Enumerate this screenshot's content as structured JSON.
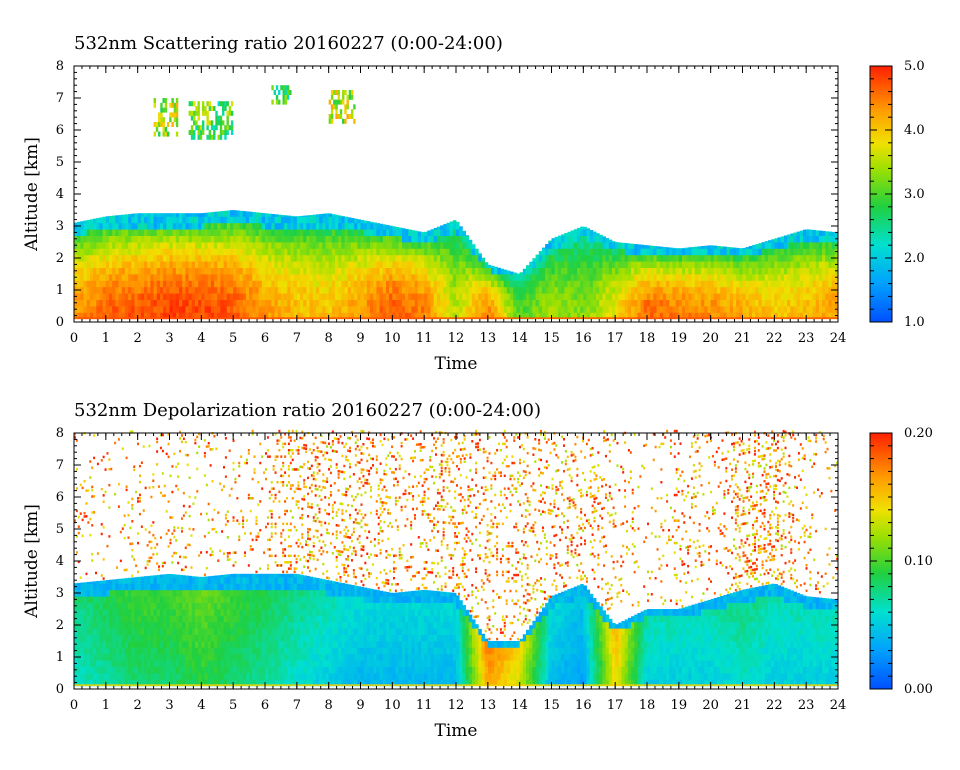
{
  "chart_data": [
    {
      "type": "heatmap",
      "title": "532nm Scattering ratio  20160227 (0:00-24:00)",
      "xlabel": "Time",
      "ylabel": "Altitude [km]",
      "xlim": [
        0,
        24
      ],
      "ylim": [
        0,
        8
      ],
      "x_ticks": [
        "0",
        "1",
        "2",
        "3",
        "4",
        "5",
        "6",
        "7",
        "8",
        "9",
        "10",
        "11",
        "12",
        "13",
        "14",
        "15",
        "16",
        "17",
        "18",
        "19",
        "20",
        "21",
        "22",
        "23",
        "24"
      ],
      "y_ticks": [
        "0",
        "1",
        "2",
        "3",
        "4",
        "5",
        "6",
        "7",
        "8"
      ],
      "colorbar": {
        "min": 1.0,
        "max": 5.0,
        "ticks": [
          "1.0",
          "2.0",
          "3.0",
          "4.0",
          "5.0"
        ]
      },
      "layer_top_km": [
        [
          0,
          3.1
        ],
        [
          1,
          3.3
        ],
        [
          2,
          3.4
        ],
        [
          3,
          3.4
        ],
        [
          4,
          3.4
        ],
        [
          5,
          3.5
        ],
        [
          6,
          3.4
        ],
        [
          7,
          3.3
        ],
        [
          8,
          3.4
        ],
        [
          9,
          3.2
        ],
        [
          10,
          3.0
        ],
        [
          11,
          2.8
        ],
        [
          12,
          3.2
        ],
        [
          13,
          1.8
        ],
        [
          14,
          1.5
        ],
        [
          15,
          2.6
        ],
        [
          16,
          3.0
        ],
        [
          17,
          2.5
        ],
        [
          18,
          2.4
        ],
        [
          19,
          2.3
        ],
        [
          20,
          2.4
        ],
        [
          21,
          2.3
        ],
        [
          22,
          2.6
        ],
        [
          23,
          2.9
        ],
        [
          24,
          2.8
        ]
      ],
      "mean_ratio_below_layer_top": [
        [
          0,
          4.3
        ],
        [
          1,
          4.6
        ],
        [
          2,
          4.7
        ],
        [
          3,
          4.8
        ],
        [
          4,
          4.8
        ],
        [
          5,
          4.7
        ],
        [
          6,
          4.3
        ],
        [
          7,
          4.1
        ],
        [
          8,
          4.0
        ],
        [
          9,
          4.3
        ],
        [
          10,
          4.7
        ],
        [
          11,
          4.5
        ],
        [
          12,
          3.5
        ],
        [
          13,
          4.5
        ],
        [
          14,
          3.0
        ],
        [
          15,
          3.4
        ],
        [
          16,
          3.2
        ],
        [
          17,
          3.8
        ],
        [
          18,
          4.6
        ],
        [
          19,
          4.5
        ],
        [
          20,
          4.4
        ],
        [
          21,
          4.2
        ],
        [
          22,
          4.0
        ],
        [
          23,
          4.1
        ],
        [
          24,
          4.3
        ]
      ],
      "cirrus_patches": [
        {
          "t": [
            2.5,
            3.2
          ],
          "alt_km": [
            5.8,
            7.0
          ],
          "ratio": 3.5
        },
        {
          "t": [
            3.6,
            5.0
          ],
          "alt_km": [
            5.7,
            6.9
          ],
          "ratio": 3.0
        },
        {
          "t": [
            6.2,
            6.8
          ],
          "alt_km": [
            6.8,
            7.3
          ],
          "ratio": 2.8
        },
        {
          "t": [
            8.0,
            8.8
          ],
          "alt_km": [
            6.2,
            7.2
          ],
          "ratio": 3.5
        }
      ]
    },
    {
      "type": "heatmap",
      "title": "532nm Depolarization ratio  20160227 (0:00-24:00)",
      "xlabel": "Time",
      "ylabel": "Altitude [km]",
      "xlim": [
        0,
        24
      ],
      "ylim": [
        0,
        8
      ],
      "x_ticks": [
        "0",
        "1",
        "2",
        "3",
        "4",
        "5",
        "6",
        "7",
        "8",
        "9",
        "10",
        "11",
        "12",
        "13",
        "14",
        "15",
        "16",
        "17",
        "18",
        "19",
        "20",
        "21",
        "22",
        "23",
        "24"
      ],
      "y_ticks": [
        "0",
        "1",
        "2",
        "3",
        "4",
        "5",
        "6",
        "7",
        "8"
      ],
      "colorbar": {
        "min": 0.0,
        "max": 0.2,
        "ticks": [
          "0.00",
          "0.10",
          "0.20"
        ]
      },
      "layer_top_km": [
        [
          0,
          3.3
        ],
        [
          1,
          3.4
        ],
        [
          2,
          3.5
        ],
        [
          3,
          3.6
        ],
        [
          4,
          3.5
        ],
        [
          5,
          3.6
        ],
        [
          6,
          3.6
        ],
        [
          7,
          3.6
        ],
        [
          8,
          3.4
        ],
        [
          9,
          3.2
        ],
        [
          10,
          3.0
        ],
        [
          11,
          3.1
        ],
        [
          12,
          3.0
        ],
        [
          13,
          1.5
        ],
        [
          14,
          1.5
        ],
        [
          15,
          2.9
        ],
        [
          16,
          3.3
        ],
        [
          17,
          2.0
        ],
        [
          18,
          2.5
        ],
        [
          19,
          2.5
        ],
        [
          20,
          2.8
        ],
        [
          21,
          3.1
        ],
        [
          22,
          3.3
        ],
        [
          23,
          2.9
        ],
        [
          24,
          2.8
        ]
      ],
      "mean_ratio_below_layer_top": [
        [
          0,
          0.07
        ],
        [
          1,
          0.08
        ],
        [
          2,
          0.09
        ],
        [
          3,
          0.09
        ],
        [
          4,
          0.1
        ],
        [
          5,
          0.09
        ],
        [
          6,
          0.08
        ],
        [
          7,
          0.07
        ],
        [
          8,
          0.06
        ],
        [
          9,
          0.05
        ],
        [
          10,
          0.05
        ],
        [
          11,
          0.05
        ],
        [
          12,
          0.05
        ],
        [
          13,
          0.17
        ],
        [
          14,
          0.14
        ],
        [
          15,
          0.05
        ],
        [
          16,
          0.04
        ],
        [
          17,
          0.15
        ],
        [
          18,
          0.06
        ],
        [
          19,
          0.06
        ],
        [
          20,
          0.06
        ],
        [
          21,
          0.07
        ],
        [
          22,
          0.06
        ],
        [
          23,
          0.06
        ],
        [
          24,
          0.06
        ]
      ],
      "upper_scatter_intensity": [
        [
          0,
          0.2
        ],
        [
          1,
          0.15
        ],
        [
          2,
          0.3
        ],
        [
          3,
          0.3
        ],
        [
          4,
          0.25
        ],
        [
          5,
          0.2
        ],
        [
          6,
          0.3
        ],
        [
          7,
          0.8
        ],
        [
          8,
          0.7
        ],
        [
          9,
          0.55
        ],
        [
          10,
          0.5
        ],
        [
          11,
          0.6
        ],
        [
          12,
          0.6
        ],
        [
          13,
          0.5
        ],
        [
          14,
          0.55
        ],
        [
          15,
          0.55
        ],
        [
          16,
          0.45
        ],
        [
          17,
          0.35
        ],
        [
          18,
          0.15
        ],
        [
          19,
          0.4
        ],
        [
          20,
          0.3
        ],
        [
          21,
          0.85
        ],
        [
          22,
          0.85
        ],
        [
          23,
          0.3
        ],
        [
          24,
          0.1
        ]
      ]
    }
  ]
}
